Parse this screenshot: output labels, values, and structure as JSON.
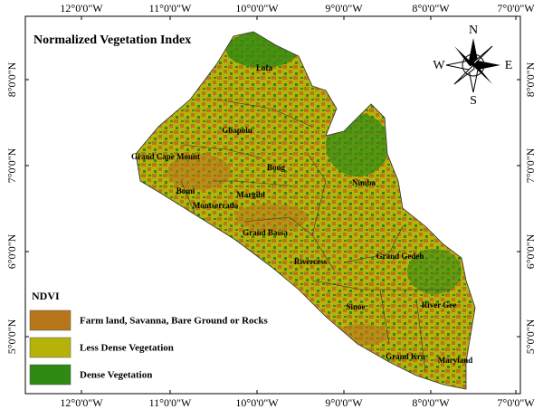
{
  "title": "Normalized Vegetation Index",
  "longitude_labels": [
    "12°0'0\"W",
    "11°0'0\"W",
    "10°0'0\"W",
    "9°0'0\"W",
    "8°0'0\"W",
    "7°0'0\"W"
  ],
  "latitude_labels": [
    "8°0'0\"N",
    "7°0'0\"N",
    "6°0'0\"N",
    "5°0'0\"N"
  ],
  "counties": [
    "Lofa",
    "Gbapolu",
    "Grand Cape Mount",
    "Bong",
    "Bomi",
    "Margibi",
    "Montserrado",
    "Nimba",
    "Grand Bassa",
    "Rivercess",
    "Grand Gedeh",
    "Sinoe",
    "River Gee",
    "Grand Kru",
    "Maryland"
  ],
  "legend": {
    "title": "NDVI",
    "items": [
      {
        "label": "Farm land, Savanna, Bare Ground or Rocks",
        "color": "#b8761a"
      },
      {
        "label": "Less Dense Vegetation",
        "color": "#b5b30a"
      },
      {
        "label": "Dense Vegetation",
        "color": "#2e8a12"
      }
    ]
  },
  "compass": {
    "north": "N",
    "east": "E",
    "south": "S",
    "west": "W"
  }
}
